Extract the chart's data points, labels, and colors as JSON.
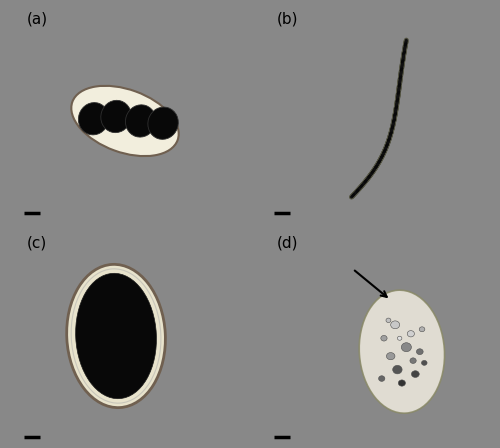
{
  "figure_width": 5.0,
  "figure_height": 4.48,
  "dpi": 100,
  "panel_labels": [
    "(a)",
    "(b)",
    "(c)",
    "(d)"
  ],
  "bg_color_a": "#e8e8a0",
  "bg_color_b": "#e8d4b0",
  "bg_color_c": "#e8e8a0",
  "bg_color_d": "#e8e8a0",
  "label_color": "#000000",
  "label_fontsize": 11,
  "scale_bar_color": "#000000",
  "scale_bar_thickness": 2.5,
  "divider_color": "#888888",
  "divider_lw": 1.5
}
